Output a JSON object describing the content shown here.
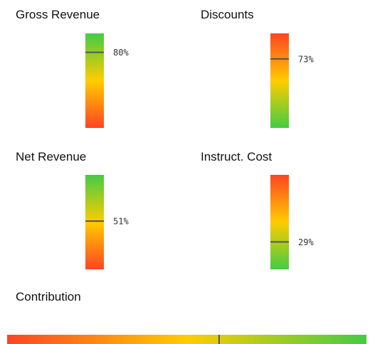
{
  "chart_data": [
    {
      "type": "gauge",
      "title": "Gross Revenue",
      "orientation": "vertical",
      "values": [
        80
      ],
      "value_labels": [
        "80%"
      ],
      "ylim": [
        0,
        100
      ],
      "gradient": [
        "#ff4422",
        "#ffcc00",
        "#44cc44"
      ]
    },
    {
      "type": "gauge",
      "title": "Discounts",
      "orientation": "vertical",
      "values": [
        73
      ],
      "value_labels": [
        "73%"
      ],
      "ylim": [
        0,
        100
      ],
      "gradient": [
        "#44cc44",
        "#ffcc00",
        "#ff4422"
      ]
    },
    {
      "type": "gauge",
      "title": "Net Revenue",
      "orientation": "vertical",
      "values": [
        51
      ],
      "value_labels": [
        "51%"
      ],
      "ylim": [
        0,
        100
      ],
      "gradient": [
        "#ff4422",
        "#ffcc00",
        "#44cc44"
      ]
    },
    {
      "type": "gauge",
      "title": "Instruct. Cost",
      "orientation": "vertical",
      "values": [
        29
      ],
      "value_labels": [
        "29%"
      ],
      "ylim": [
        0,
        100
      ],
      "gradient": [
        "#44cc44",
        "#ffcc00",
        "#ff4422"
      ]
    },
    {
      "type": "gauge",
      "title": "Contribution",
      "orientation": "horizontal",
      "values": [
        59
      ],
      "ylim": [
        0,
        100
      ],
      "gradient": [
        "#ff4422",
        "#ffcc00",
        "#44cc44"
      ]
    }
  ]
}
